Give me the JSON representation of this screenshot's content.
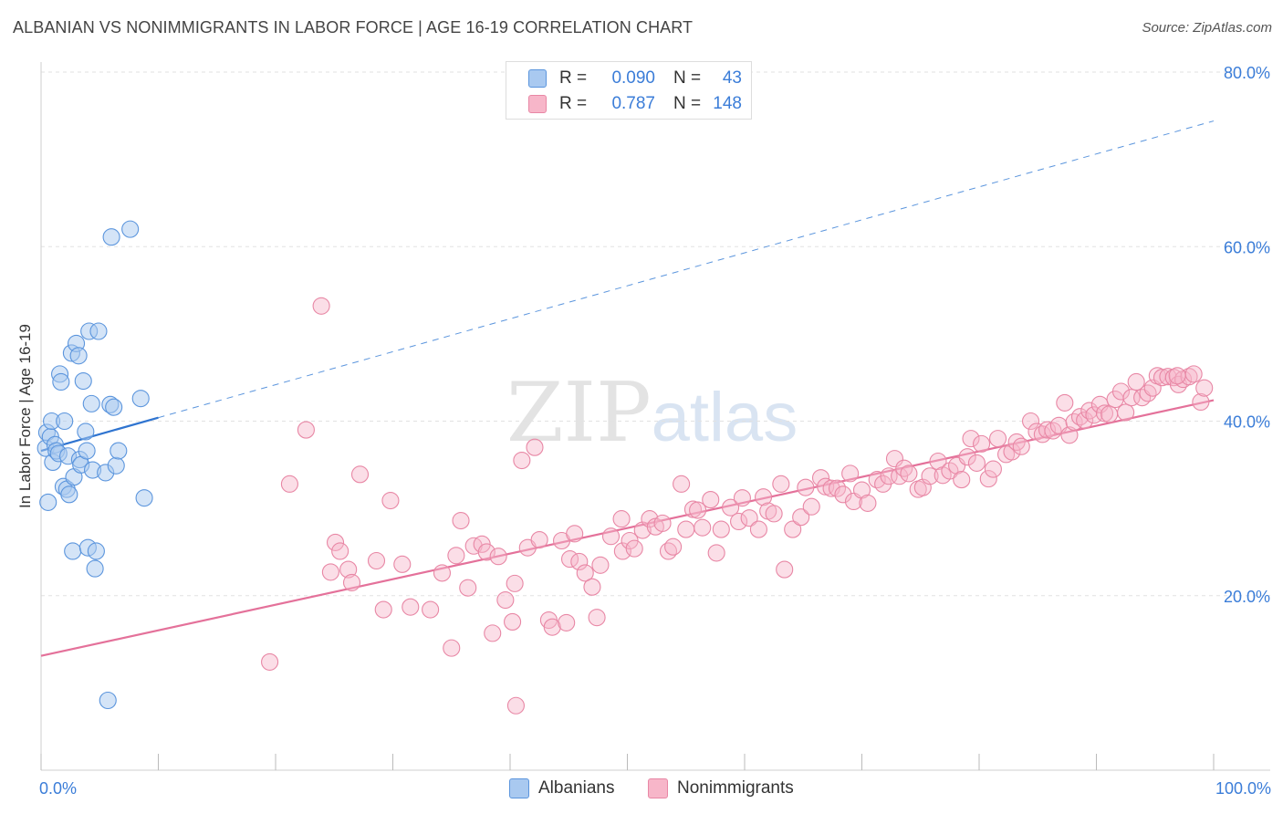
{
  "header": {
    "title": "ALBANIAN VS NONIMMIGRANTS IN LABOR FORCE | AGE 16-19 CORRELATION CHART",
    "source": "Source: ZipAtlas.com"
  },
  "watermark": {
    "zip": "ZIP",
    "atlas": "atlas"
  },
  "legend": {
    "rows": [
      {
        "r_label": "R =",
        "r_value": "0.090",
        "n_label": "N =",
        "n_value": "43",
        "color": "#a9c9f0"
      },
      {
        "r_label": "R =",
        "r_value": "0.787",
        "n_label": "N =",
        "n_value": "148",
        "color": "#f7b6c9"
      }
    ]
  },
  "bottom_legend": {
    "albanians": "Albanians",
    "nonimmigrants": "Nonimmigrants"
  },
  "colors": {
    "albanian_fill": "#a9c9f0",
    "albanian_stroke": "#5b95dd",
    "albanian_line": "#2f74d0",
    "nonimm_fill": "#f7b6c9",
    "nonimm_stroke": "#e887a5",
    "nonimm_line": "#e4719a",
    "tick_text": "#3b7dd8"
  },
  "chart_data": {
    "type": "scatter",
    "title": "ALBANIAN VS NONIMMIGRANTS IN LABOR FORCE | AGE 16-19 CORRELATION CHART",
    "xlabel": "",
    "ylabel": "In Labor Force | Age 16-19",
    "xlim": [
      0,
      100
    ],
    "ylim": [
      0,
      80
    ],
    "x_tick_labels": [
      "0.0%",
      "100.0%"
    ],
    "y_ticks": [
      20,
      40,
      60,
      80
    ],
    "y_tick_labels": [
      "20.0%",
      "40.0%",
      "60.0%",
      "80.0%"
    ],
    "grid": true,
    "series": [
      {
        "name": "Albanians",
        "R": 0.09,
        "N": 43,
        "trend_solid": [
          [
            0,
            36.6
          ],
          [
            10,
            40.4
          ]
        ],
        "trend_dashed": [
          [
            10,
            40.4
          ],
          [
            100,
            74.4
          ]
        ],
        "points": [
          [
            0.4,
            36.9
          ],
          [
            0.5,
            38.7
          ],
          [
            0.6,
            30.7
          ],
          [
            0.8,
            38.2
          ],
          [
            0.9,
            40.0
          ],
          [
            1.0,
            35.3
          ],
          [
            1.2,
            37.3
          ],
          [
            1.3,
            36.6
          ],
          [
            1.5,
            36.3
          ],
          [
            1.6,
            45.4
          ],
          [
            1.7,
            44.5
          ],
          [
            1.9,
            32.5
          ],
          [
            2.0,
            40.0
          ],
          [
            2.2,
            32.2
          ],
          [
            2.3,
            36.0
          ],
          [
            2.4,
            31.6
          ],
          [
            2.6,
            47.8
          ],
          [
            2.7,
            25.1
          ],
          [
            2.8,
            33.6
          ],
          [
            3.0,
            48.9
          ],
          [
            3.2,
            47.5
          ],
          [
            3.3,
            35.6
          ],
          [
            3.4,
            35.0
          ],
          [
            3.6,
            44.6
          ],
          [
            3.8,
            38.8
          ],
          [
            3.9,
            36.6
          ],
          [
            4.0,
            25.5
          ],
          [
            4.1,
            50.3
          ],
          [
            4.3,
            42.0
          ],
          [
            4.4,
            34.4
          ],
          [
            4.6,
            23.1
          ],
          [
            4.7,
            25.1
          ],
          [
            4.9,
            50.3
          ],
          [
            5.5,
            34.1
          ],
          [
            5.7,
            8.0
          ],
          [
            5.9,
            41.9
          ],
          [
            6.0,
            61.1
          ],
          [
            6.2,
            41.6
          ],
          [
            6.4,
            34.9
          ],
          [
            6.6,
            36.6
          ],
          [
            7.6,
            62.0
          ],
          [
            8.5,
            42.6
          ],
          [
            8.8,
            31.2
          ]
        ]
      },
      {
        "name": "Nonimmigrants",
        "R": 0.787,
        "N": 148,
        "trend": [
          [
            0,
            13.1
          ],
          [
            100,
            42.4
          ]
        ],
        "points": [
          [
            19.5,
            12.4
          ],
          [
            21.2,
            32.8
          ],
          [
            22.6,
            39.0
          ],
          [
            23.9,
            53.2
          ],
          [
            24.7,
            22.7
          ],
          [
            25.1,
            26.1
          ],
          [
            25.5,
            25.1
          ],
          [
            26.2,
            23.0
          ],
          [
            26.5,
            21.5
          ],
          [
            27.2,
            33.9
          ],
          [
            29.8,
            30.9
          ],
          [
            28.6,
            24.0
          ],
          [
            29.2,
            18.4
          ],
          [
            30.8,
            23.6
          ],
          [
            31.5,
            18.7
          ],
          [
            33.2,
            18.4
          ],
          [
            34.2,
            22.6
          ],
          [
            35.0,
            14.0
          ],
          [
            35.4,
            24.6
          ],
          [
            35.8,
            28.6
          ],
          [
            36.4,
            20.9
          ],
          [
            36.9,
            25.7
          ],
          [
            37.6,
            25.9
          ],
          [
            38.0,
            25.0
          ],
          [
            38.5,
            15.7
          ],
          [
            39.0,
            24.5
          ],
          [
            39.6,
            19.5
          ],
          [
            40.2,
            17.0
          ],
          [
            40.4,
            21.4
          ],
          [
            40.5,
            7.4
          ],
          [
            41.0,
            35.5
          ],
          [
            41.5,
            25.5
          ],
          [
            42.1,
            37.0
          ],
          [
            42.5,
            26.4
          ],
          [
            43.3,
            17.2
          ],
          [
            43.6,
            16.4
          ],
          [
            44.4,
            26.3
          ],
          [
            44.8,
            16.9
          ],
          [
            45.1,
            24.2
          ],
          [
            45.5,
            27.1
          ],
          [
            45.9,
            23.9
          ],
          [
            46.4,
            22.6
          ],
          [
            47.0,
            21.0
          ],
          [
            47.4,
            17.5
          ],
          [
            47.7,
            23.5
          ],
          [
            48.6,
            26.8
          ],
          [
            49.5,
            28.8
          ],
          [
            49.6,
            25.1
          ],
          [
            50.2,
            26.3
          ],
          [
            50.6,
            25.4
          ],
          [
            51.3,
            27.5
          ],
          [
            51.9,
            28.8
          ],
          [
            52.4,
            27.9
          ],
          [
            53.0,
            28.3
          ],
          [
            53.5,
            25.1
          ],
          [
            53.9,
            25.6
          ],
          [
            54.6,
            32.8
          ],
          [
            55.0,
            27.6
          ],
          [
            55.6,
            29.9
          ],
          [
            56.0,
            29.8
          ],
          [
            56.4,
            27.8
          ],
          [
            57.1,
            31.0
          ],
          [
            57.6,
            24.9
          ],
          [
            58.0,
            27.6
          ],
          [
            58.8,
            30.1
          ],
          [
            59.5,
            28.5
          ],
          [
            59.8,
            31.2
          ],
          [
            60.4,
            28.9
          ],
          [
            61.2,
            27.6
          ],
          [
            61.6,
            31.3
          ],
          [
            62.0,
            29.7
          ],
          [
            62.5,
            29.4
          ],
          [
            63.1,
            32.8
          ],
          [
            63.4,
            23.0
          ],
          [
            64.1,
            27.6
          ],
          [
            64.8,
            29.0
          ],
          [
            65.2,
            32.4
          ],
          [
            65.7,
            30.2
          ],
          [
            66.5,
            33.5
          ],
          [
            66.9,
            32.5
          ],
          [
            67.4,
            32.3
          ],
          [
            67.9,
            32.3
          ],
          [
            68.4,
            31.6
          ],
          [
            69.0,
            34.0
          ],
          [
            69.3,
            30.8
          ],
          [
            70.0,
            32.1
          ],
          [
            70.5,
            30.6
          ],
          [
            71.3,
            33.3
          ],
          [
            71.8,
            32.8
          ],
          [
            72.3,
            33.7
          ],
          [
            72.8,
            35.7
          ],
          [
            73.2,
            33.7
          ],
          [
            73.6,
            34.6
          ],
          [
            74.0,
            34.0
          ],
          [
            74.8,
            32.2
          ],
          [
            75.2,
            32.4
          ],
          [
            75.8,
            33.7
          ],
          [
            76.5,
            35.4
          ],
          [
            76.9,
            33.8
          ],
          [
            77.5,
            34.3
          ],
          [
            78.1,
            34.9
          ],
          [
            78.5,
            33.3
          ],
          [
            79.0,
            35.9
          ],
          [
            79.3,
            38.0
          ],
          [
            79.8,
            35.2
          ],
          [
            80.2,
            37.4
          ],
          [
            80.8,
            33.4
          ],
          [
            81.2,
            34.5
          ],
          [
            81.6,
            38.0
          ],
          [
            82.3,
            36.2
          ],
          [
            82.8,
            36.5
          ],
          [
            83.2,
            37.6
          ],
          [
            83.6,
            37.1
          ],
          [
            84.4,
            40.0
          ],
          [
            84.9,
            38.8
          ],
          [
            85.4,
            38.5
          ],
          [
            85.8,
            39.0
          ],
          [
            86.3,
            38.9
          ],
          [
            86.8,
            39.5
          ],
          [
            87.3,
            42.1
          ],
          [
            87.7,
            38.4
          ],
          [
            88.1,
            39.9
          ],
          [
            88.6,
            40.5
          ],
          [
            89.0,
            40.1
          ],
          [
            89.4,
            41.2
          ],
          [
            89.8,
            40.7
          ],
          [
            90.3,
            41.9
          ],
          [
            90.7,
            40.9
          ],
          [
            91.1,
            40.8
          ],
          [
            91.6,
            42.5
          ],
          [
            92.1,
            43.4
          ],
          [
            92.5,
            41.0
          ],
          [
            93.0,
            42.7
          ],
          [
            93.4,
            44.5
          ],
          [
            93.9,
            42.7
          ],
          [
            94.4,
            43.2
          ],
          [
            94.8,
            43.8
          ],
          [
            95.2,
            45.2
          ],
          [
            95.6,
            45.0
          ],
          [
            96.1,
            45.1
          ],
          [
            96.6,
            45.0
          ],
          [
            97.0,
            44.2
          ],
          [
            97.4,
            44.8
          ],
          [
            97.9,
            45.1
          ],
          [
            98.3,
            45.4
          ],
          [
            98.9,
            42.2
          ],
          [
            99.2,
            43.8
          ],
          [
            96.9,
            45.2
          ]
        ]
      }
    ]
  }
}
